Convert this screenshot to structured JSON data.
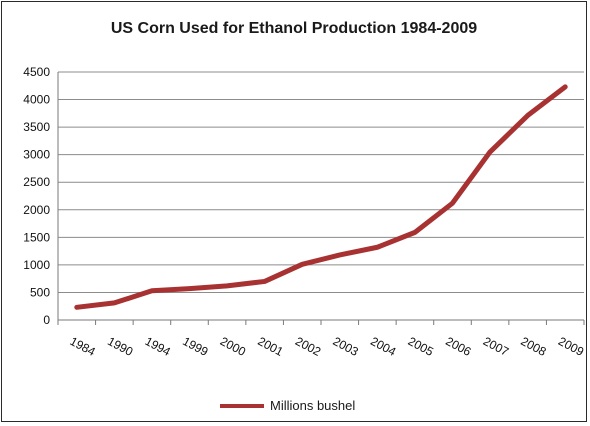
{
  "chart_data": {
    "type": "line",
    "title": "US Corn Used for Ethanol Production 1984-2009",
    "xlabel": "",
    "ylabel": "",
    "categories": [
      "1984",
      "1990",
      "1994",
      "1999",
      "2000",
      "2001",
      "2002",
      "2003",
      "2004",
      "2005",
      "2006",
      "2007",
      "2008",
      "2009"
    ],
    "series": [
      {
        "name": "Millions bushel",
        "color": "#a83232",
        "values": [
          230,
          310,
          530,
          570,
          620,
          700,
          1010,
          1180,
          1320,
          1590,
          2120,
          3050,
          3710,
          4230
        ]
      }
    ],
    "ylim": [
      0,
      4500
    ],
    "yticks": [
      0,
      500,
      1000,
      1500,
      2000,
      2500,
      3000,
      3500,
      4000,
      4500
    ],
    "grid": true,
    "legend_position": "bottom"
  }
}
